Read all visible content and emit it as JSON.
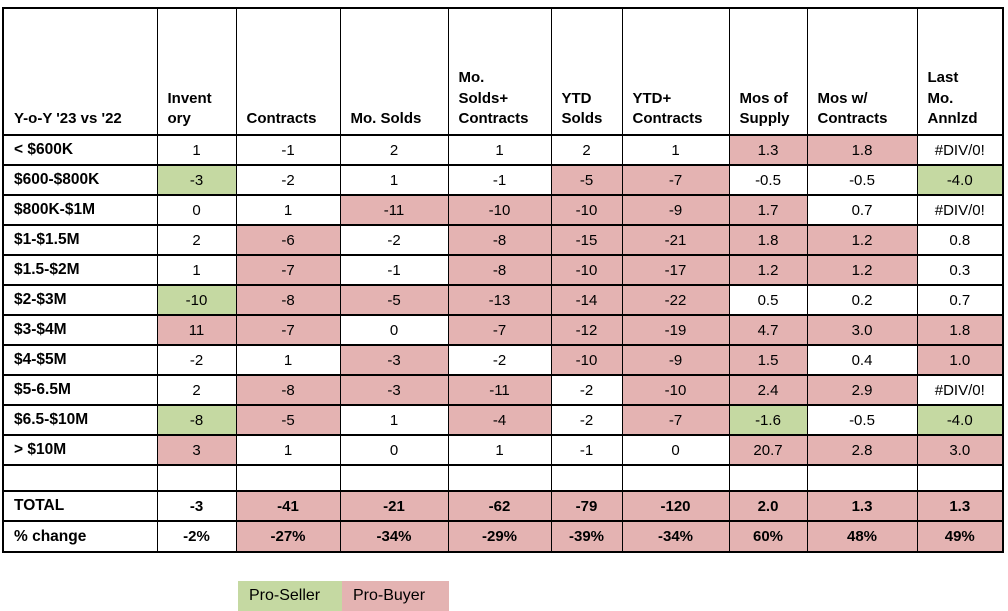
{
  "chart_data": {
    "type": "table",
    "corner_label": "Y-o-Y '23 vs '22",
    "columns": [
      "Invent\nory",
      "Contracts",
      "Mo. Solds",
      "Mo.\nSolds+\nContracts",
      "YTD\nSolds",
      "YTD+\nContracts",
      "Mos of\nSupply",
      "Mos w/\nContracts",
      "Last\nMo.\nAnnlzd"
    ],
    "fill_key": {
      "w": "neutral-white",
      "g": "pro-seller-green",
      "p": "pro-buyer-pink"
    },
    "rows": [
      {
        "type": "data",
        "label": "< $600K",
        "values": [
          "1",
          "-1",
          "2",
          "1",
          "2",
          "1",
          "1.3",
          "1.8",
          "#DIV/0!"
        ],
        "fills": [
          "w",
          "w",
          "w",
          "w",
          "w",
          "w",
          "p",
          "p",
          "w"
        ]
      },
      {
        "type": "data",
        "label": "$600-$800K",
        "values": [
          "-3",
          "-2",
          "1",
          "-1",
          "-5",
          "-7",
          "-0.5",
          "-0.5",
          "-4.0"
        ],
        "fills": [
          "g",
          "w",
          "w",
          "w",
          "p",
          "p",
          "w",
          "w",
          "g"
        ]
      },
      {
        "type": "data",
        "label": "$800K-$1M",
        "values": [
          "0",
          "1",
          "-11",
          "-10",
          "-10",
          "-9",
          "1.7",
          "0.7",
          "#DIV/0!"
        ],
        "fills": [
          "w",
          "w",
          "p",
          "p",
          "p",
          "p",
          "p",
          "w",
          "w"
        ]
      },
      {
        "type": "data",
        "label": "$1-$1.5M",
        "values": [
          "2",
          "-6",
          "-2",
          "-8",
          "-15",
          "-21",
          "1.8",
          "1.2",
          "0.8"
        ],
        "fills": [
          "w",
          "p",
          "w",
          "p",
          "p",
          "p",
          "p",
          "p",
          "w"
        ]
      },
      {
        "type": "data",
        "label": "$1.5-$2M",
        "values": [
          "1",
          "-7",
          "-1",
          "-8",
          "-10",
          "-17",
          "1.2",
          "1.2",
          "0.3"
        ],
        "fills": [
          "w",
          "p",
          "w",
          "p",
          "p",
          "p",
          "p",
          "p",
          "w"
        ]
      },
      {
        "type": "data",
        "label": "$2-$3M",
        "values": [
          "-10",
          "-8",
          "-5",
          "-13",
          "-14",
          "-22",
          "0.5",
          "0.2",
          "0.7"
        ],
        "fills": [
          "g",
          "p",
          "p",
          "p",
          "p",
          "p",
          "w",
          "w",
          "w"
        ]
      },
      {
        "type": "data",
        "label": "$3-$4M",
        "values": [
          "11",
          "-7",
          "0",
          "-7",
          "-12",
          "-19",
          "4.7",
          "3.0",
          "1.8"
        ],
        "fills": [
          "p",
          "p",
          "w",
          "p",
          "p",
          "p",
          "p",
          "p",
          "p"
        ]
      },
      {
        "type": "data",
        "label": "$4-$5M",
        "values": [
          "-2",
          "1",
          "-3",
          "-2",
          "-10",
          "-9",
          "1.5",
          "0.4",
          "1.0"
        ],
        "fills": [
          "w",
          "w",
          "p",
          "w",
          "p",
          "p",
          "p",
          "w",
          "p"
        ]
      },
      {
        "type": "data",
        "label": "$5-6.5M",
        "values": [
          "2",
          "-8",
          "-3",
          "-11",
          "-2",
          "-10",
          "2.4",
          "2.9",
          "#DIV/0!"
        ],
        "fills": [
          "w",
          "p",
          "p",
          "p",
          "w",
          "p",
          "p",
          "p",
          "w"
        ]
      },
      {
        "type": "data",
        "label": "$6.5-$10M",
        "values": [
          "-8",
          "-5",
          "1",
          "-4",
          "-2",
          "-7",
          "-1.6",
          "-0.5",
          "-4.0"
        ],
        "fills": [
          "g",
          "p",
          "w",
          "p",
          "w",
          "p",
          "g",
          "w",
          "g"
        ]
      },
      {
        "type": "data",
        "label": "> $10M",
        "values": [
          "3",
          "1",
          "0",
          "1",
          "-1",
          "0",
          "20.7",
          "2.8",
          "3.0"
        ],
        "fills": [
          "p",
          "w",
          "w",
          "w",
          "w",
          "w",
          "p",
          "p",
          "p"
        ]
      },
      {
        "type": "blank",
        "label": "",
        "values": [
          "",
          "",
          "",
          "",
          "",
          "",
          "",
          "",
          ""
        ],
        "fills": [
          "w",
          "w",
          "w",
          "w",
          "w",
          "w",
          "w",
          "w",
          "w"
        ]
      },
      {
        "type": "total",
        "label": "TOTAL",
        "values": [
          "-3",
          "-41",
          "-21",
          "-62",
          "-79",
          "-120",
          "2.0",
          "1.3",
          "1.3"
        ],
        "fills": [
          "w",
          "p",
          "p",
          "p",
          "p",
          "p",
          "p",
          "p",
          "p"
        ]
      },
      {
        "type": "pct",
        "label": "% change",
        "values": [
          "-2%",
          "-27%",
          "-34%",
          "-29%",
          "-39%",
          "-34%",
          "60%",
          "48%",
          "49%"
        ],
        "fills": [
          "w",
          "p",
          "p",
          "p",
          "p",
          "p",
          "p",
          "p",
          "p"
        ]
      }
    ]
  },
  "legend": {
    "pro_seller_label": "Pro-Seller",
    "pro_buyer_label": "Pro-Buyer"
  },
  "colors": {
    "pro_seller_green": "#c5d9a2",
    "pro_buyer_pink": "#e4b3b2",
    "grid_border": "#000000",
    "text": "#000000"
  }
}
